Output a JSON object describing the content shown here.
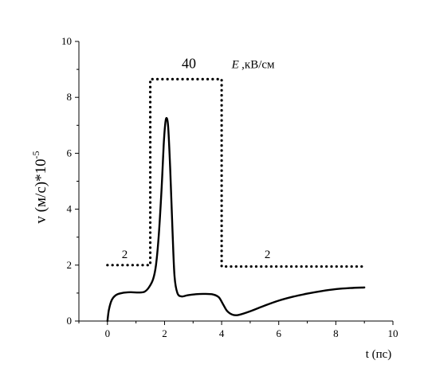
{
  "chart_data": {
    "type": "line",
    "title": "",
    "xlabel": "t (пс)",
    "ylabel": "v (м/с)*10",
    "ylabel_exponent": "-5",
    "xlim": [
      -1,
      10
    ],
    "ylim": [
      0,
      10
    ],
    "x_ticks": [
      0,
      2,
      4,
      6,
      8,
      10
    ],
    "y_ticks": [
      0,
      2,
      4,
      6,
      8,
      10
    ],
    "grid": false,
    "annotations": [
      {
        "text": "40",
        "x": 2.6,
        "y": 9.05,
        "style": "big"
      },
      {
        "text": "E",
        "x": 4.35,
        "y": 9.05,
        "style": "italic"
      },
      {
        "text": ",кВ/см",
        "x": 4.7,
        "y": 9.05,
        "style": "normal"
      },
      {
        "text": "2",
        "x": 0.5,
        "y": 2.25,
        "style": "small"
      },
      {
        "text": "2",
        "x": 5.5,
        "y": 2.25,
        "style": "small"
      }
    ],
    "series": [
      {
        "style": "solid",
        "points": [
          [
            0.0,
            0.0
          ],
          [
            0.05,
            0.4
          ],
          [
            0.15,
            0.75
          ],
          [
            0.3,
            0.93
          ],
          [
            0.5,
            1.0
          ],
          [
            0.8,
            1.03
          ],
          [
            1.1,
            1.02
          ],
          [
            1.3,
            1.05
          ],
          [
            1.45,
            1.2
          ],
          [
            1.6,
            1.5
          ],
          [
            1.7,
            2.0
          ],
          [
            1.8,
            3.1
          ],
          [
            1.9,
            4.8
          ],
          [
            1.97,
            6.3
          ],
          [
            2.03,
            7.1
          ],
          [
            2.08,
            7.25
          ],
          [
            2.13,
            6.9
          ],
          [
            2.2,
            5.4
          ],
          [
            2.28,
            3.2
          ],
          [
            2.35,
            1.6
          ],
          [
            2.45,
            1.0
          ],
          [
            2.6,
            0.88
          ],
          [
            2.8,
            0.92
          ],
          [
            3.1,
            0.96
          ],
          [
            3.4,
            0.97
          ],
          [
            3.7,
            0.95
          ],
          [
            3.9,
            0.85
          ],
          [
            4.05,
            0.6
          ],
          [
            4.2,
            0.35
          ],
          [
            4.4,
            0.22
          ],
          [
            4.6,
            0.22
          ],
          [
            5.0,
            0.35
          ],
          [
            5.5,
            0.55
          ],
          [
            6.0,
            0.73
          ],
          [
            6.5,
            0.87
          ],
          [
            7.0,
            0.98
          ],
          [
            7.5,
            1.07
          ],
          [
            8.0,
            1.14
          ],
          [
            8.5,
            1.18
          ],
          [
            9.0,
            1.2
          ]
        ]
      },
      {
        "style": "dotted",
        "points": [
          [
            0.0,
            2.0
          ],
          [
            1.5,
            2.0
          ],
          [
            1.5,
            8.65
          ],
          [
            4.0,
            8.65
          ],
          [
            4.0,
            1.95
          ],
          [
            9.0,
            1.95
          ]
        ]
      }
    ]
  }
}
